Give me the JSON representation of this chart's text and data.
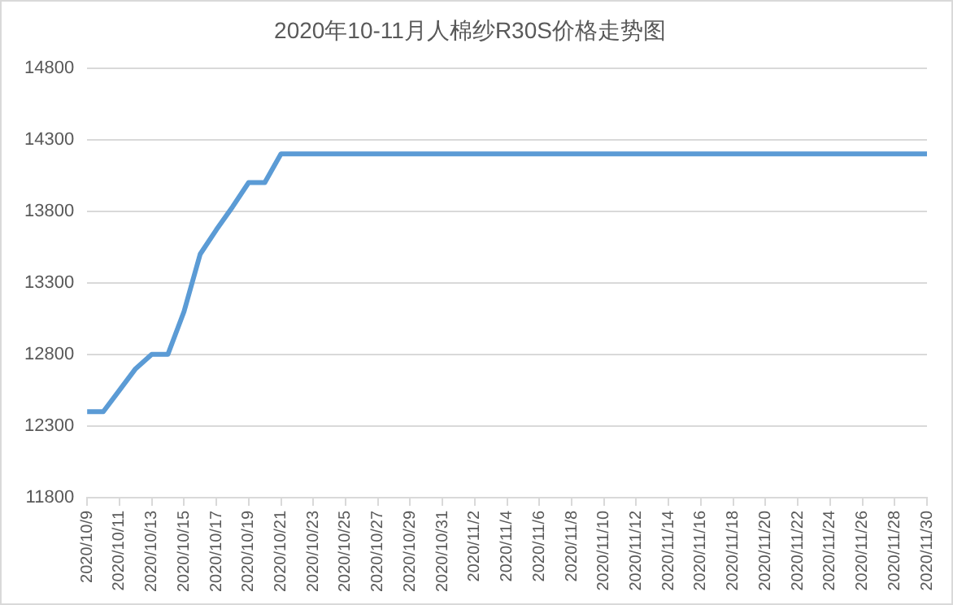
{
  "chart_data": {
    "type": "line",
    "title": "2020年10-11月人棉纱R30S价格走势图",
    "categories": [
      "2020/10/9",
      null,
      "2020/10/11",
      null,
      "2020/10/13",
      null,
      "2020/10/15",
      null,
      "2020/10/17",
      null,
      "2020/10/19",
      null,
      "2020/10/21",
      null,
      "2020/10/23",
      null,
      "2020/10/25",
      null,
      "2020/10/27",
      null,
      "2020/10/29",
      null,
      "2020/10/31",
      null,
      "2020/11/2",
      null,
      "2020/11/4",
      null,
      "2020/11/6",
      null,
      "2020/11/8",
      null,
      "2020/11/10",
      null,
      "2020/11/12",
      null,
      "2020/11/14",
      null,
      "2020/11/16",
      null,
      "2020/11/18",
      null,
      "2020/11/20",
      null,
      "2020/11/22",
      null,
      "2020/11/24",
      null,
      "2020/11/26",
      null,
      "2020/11/28",
      null,
      "2020/11/30"
    ],
    "series": [
      {
        "color": "#5b9bd5",
        "values": [
          12400,
          12400,
          12550,
          12700,
          12800,
          12800,
          13100,
          13500,
          13670,
          13830,
          14000,
          14000,
          14200,
          14200,
          14200,
          14200,
          14200,
          14200,
          14200,
          14200,
          14200,
          14200,
          14200,
          14200,
          14200,
          14200,
          14200,
          14200,
          14200,
          14200,
          14200,
          14200,
          14200,
          14200,
          14200,
          14200,
          14200,
          14200,
          14200,
          14200,
          14200,
          14200,
          14200,
          14200,
          14200,
          14200,
          14200,
          14200,
          14200,
          14200,
          14200,
          14200,
          14200
        ]
      }
    ],
    "ylim": [
      11800,
      14800
    ],
    "yticks": [
      11800,
      12300,
      12800,
      13300,
      13800,
      14300,
      14800
    ],
    "grid": "y",
    "legend": false,
    "marker": "none",
    "line_style": "solid"
  }
}
